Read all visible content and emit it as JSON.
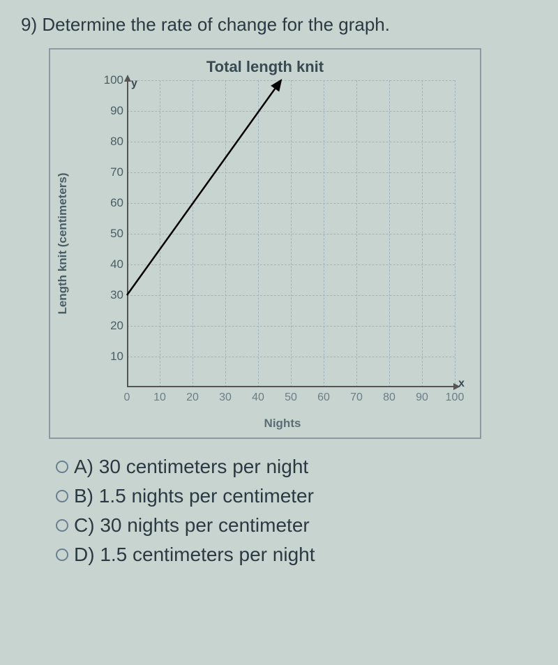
{
  "question": {
    "number": "9)",
    "prompt": "Determine the rate of change for the graph."
  },
  "chart": {
    "type": "line",
    "title": "Total length knit",
    "x_axis_title": "Nights",
    "y_axis_title": "Length knit (centimeters)",
    "x_label": "x",
    "y_label": "y",
    "xlim": [
      0,
      100
    ],
    "ylim": [
      0,
      100
    ],
    "xtick_step": 10,
    "ytick_step": 10,
    "x_ticks": [
      0,
      10,
      20,
      30,
      40,
      50,
      60,
      70,
      80,
      90,
      100
    ],
    "y_ticks": [
      10,
      20,
      30,
      40,
      50,
      60,
      70,
      80,
      90,
      100
    ],
    "origin_label": "0",
    "line_points": [
      [
        0,
        30
      ],
      [
        47,
        100
      ]
    ],
    "line_color": "#000000",
    "line_width": 2.5,
    "arrow_end": true,
    "grid_color": "#a0b4ba",
    "grid_style": "dashed",
    "background_color": "#c8d4d0",
    "axis_color": "#555555",
    "tick_fontsize": 16,
    "title_fontsize": 22,
    "axis_title_fontsize": 17
  },
  "options": [
    {
      "letter": "A)",
      "text": "30 centimeters per night"
    },
    {
      "letter": "B)",
      "text": "1.5 nights per centimeter"
    },
    {
      "letter": "C)",
      "text": "30 nights per centimeter"
    },
    {
      "letter": "D)",
      "text": "1.5 centimeters per night"
    }
  ]
}
